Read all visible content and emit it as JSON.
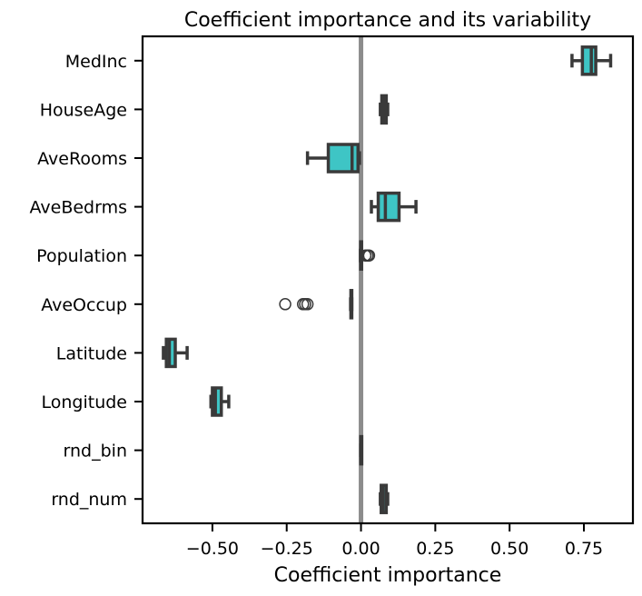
{
  "chart_data": {
    "type": "box",
    "orientation": "horizontal",
    "title": "Coefficient importance and its variability",
    "xlabel": "Coefficient importance",
    "ylabel": "",
    "xlim": [
      -0.735,
      0.915
    ],
    "xticks": [
      -0.5,
      -0.25,
      0.0,
      0.25,
      0.5,
      0.75
    ],
    "xtick_labels": [
      "−0.50",
      "−0.25",
      "0.00",
      "0.25",
      "0.50",
      "0.75"
    ],
    "grid": false,
    "reference_line": {
      "x": 0.0,
      "color": "#8c8c8c"
    },
    "box_color": "#3ec5c5",
    "line_color": "#3a3a3a",
    "categories": [
      "MedInc",
      "HouseAge",
      "AveRooms",
      "AveBedrms",
      "Population",
      "AveOccup",
      "Latitude",
      "Longitude",
      "rnd_bin",
      "rnd_num"
    ],
    "boxes": [
      {
        "label": "MedInc",
        "whisker_low": 0.71,
        "q1": 0.745,
        "median": 0.775,
        "q3": 0.79,
        "whisker_high": 0.84,
        "outliers": []
      },
      {
        "label": "HouseAge",
        "whisker_low": 0.065,
        "q1": 0.07,
        "median": 0.077,
        "q3": 0.085,
        "whisker_high": 0.09,
        "outliers": []
      },
      {
        "label": "AveRooms",
        "whisker_low": -0.18,
        "q1": -0.11,
        "median": -0.03,
        "q3": -0.01,
        "whisker_high": -0.005,
        "outliers": []
      },
      {
        "label": "AveBedrms",
        "whisker_low": 0.035,
        "q1": 0.058,
        "median": 0.082,
        "q3": 0.128,
        "whisker_high": 0.185,
        "outliers": []
      },
      {
        "label": "Population",
        "whisker_low": -0.002,
        "q1": -0.001,
        "median": 0.0,
        "q3": 0.001,
        "whisker_high": 0.002,
        "outliers": [
          0.015,
          0.022,
          0.027
        ]
      },
      {
        "label": "AveOccup",
        "whisker_low": -0.035,
        "q1": -0.034,
        "median": -0.033,
        "q3": -0.032,
        "whisker_high": -0.031,
        "outliers": [
          -0.255,
          -0.195,
          -0.188,
          -0.18
        ]
      },
      {
        "label": "Latitude",
        "whisker_low": -0.665,
        "q1": -0.655,
        "median": -0.645,
        "q3": -0.625,
        "whisker_high": -0.585,
        "outliers": []
      },
      {
        "label": "Longitude",
        "whisker_low": -0.505,
        "q1": -0.5,
        "median": -0.49,
        "q3": -0.47,
        "whisker_high": -0.445,
        "outliers": []
      },
      {
        "label": "rnd_bin",
        "whisker_low": -0.001,
        "q1": -0.0005,
        "median": 0.0,
        "q3": 0.0005,
        "whisker_high": 0.001,
        "outliers": []
      },
      {
        "label": "rnd_num",
        "whisker_low": 0.065,
        "q1": 0.068,
        "median": 0.074,
        "q3": 0.085,
        "whisker_high": 0.09,
        "outliers": []
      }
    ]
  }
}
